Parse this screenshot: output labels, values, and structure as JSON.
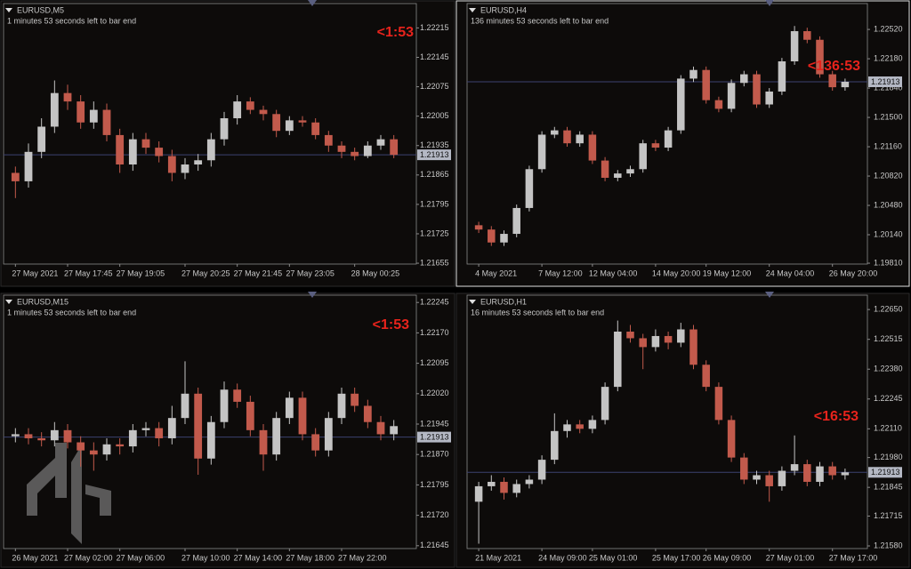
{
  "chart_data": [
    {
      "type": "candlestick",
      "title": "EURUSD,M5",
      "subtitle": "1 minutes 53 seconds left to bar end",
      "annotation": "<1:53",
      "categories": [
        "27 May 2021",
        null,
        null,
        null,
        "27 May 17:45",
        null,
        null,
        null,
        "27 May 19:05",
        null,
        null,
        null,
        null,
        "27 May 20:25",
        null,
        null,
        null,
        "27 May 21:45",
        null,
        null,
        null,
        "27 May 23:05",
        null,
        null,
        null,
        null,
        "28 May 00:25",
        null,
        null,
        null
      ],
      "open": [
        1.2187,
        1.2185,
        1.2192,
        1.2198,
        1.2206,
        1.2204,
        1.2199,
        1.2202,
        1.2196,
        1.2189,
        1.2195,
        1.2193,
        1.2191,
        1.2187,
        1.2189,
        1.219,
        1.2195,
        1.22,
        1.2204,
        1.2202,
        1.2201,
        1.2197,
        1.21995,
        1.2199,
        1.2196,
        1.21935,
        1.2192,
        1.2191,
        1.21935,
        1.2195
      ],
      "high": [
        1.21885,
        1.2194,
        1.22,
        1.2209,
        1.2208,
        1.22055,
        1.2204,
        1.22035,
        1.21975,
        1.21965,
        1.21965,
        1.21945,
        1.21925,
        1.21905,
        1.21915,
        1.21965,
        1.22015,
        1.22055,
        1.2205,
        1.2203,
        1.2202,
        1.22005,
        1.22005,
        1.22,
        1.2197,
        1.21945,
        1.2193,
        1.21945,
        1.2196,
        1.2196
      ],
      "low": [
        1.2181,
        1.21835,
        1.21905,
        1.21965,
        1.2202,
        1.21975,
        1.21975,
        1.21945,
        1.2187,
        1.21875,
        1.21915,
        1.21895,
        1.2185,
        1.21855,
        1.21875,
        1.21885,
        1.21935,
        1.21985,
        1.2201,
        1.21995,
        1.21955,
        1.2196,
        1.2198,
        1.2195,
        1.2192,
        1.21905,
        1.219,
        1.21905,
        1.21925,
        1.21905
      ],
      "close": [
        1.2185,
        1.2192,
        1.2198,
        1.2206,
        1.2204,
        1.2199,
        1.2202,
        1.2196,
        1.2189,
        1.2195,
        1.2193,
        1.2191,
        1.2187,
        1.2189,
        1.219,
        1.2195,
        1.22,
        1.2204,
        1.2202,
        1.2201,
        1.2197,
        1.21995,
        1.2199,
        1.2196,
        1.21935,
        1.2192,
        1.2191,
        1.21935,
        1.2195,
        1.21913
      ],
      "ylim": [
        1.21653,
        1.22273
      ],
      "yticks": [
        1.22215,
        1.22145,
        1.22075,
        1.22005,
        1.21935,
        1.21865,
        1.21795,
        1.21725,
        1.21655
      ],
      "last_price": 1.21913,
      "up_color": "#c4c4c4",
      "down_color": "#c25a4c",
      "annotation_color": "#e8231c",
      "price_line_color": "#3d4270"
    },
    {
      "type": "candlestick",
      "title": "EURUSD,H4",
      "subtitle": "136 minutes 53 seconds left to bar end",
      "annotation": "<136:53",
      "categories": [
        "4 May 2021",
        null,
        null,
        null,
        null,
        "7 May 12:00",
        null,
        null,
        null,
        "12 May 04:00",
        null,
        null,
        null,
        null,
        "14 May 20:00",
        null,
        null,
        null,
        "19 May 12:00",
        null,
        null,
        null,
        null,
        "24 May 04:00",
        null,
        null,
        null,
        null,
        "26 May 20:00",
        null
      ],
      "open": [
        1.2025,
        1.202,
        1.2005,
        1.2015,
        1.2045,
        1.209,
        1.213,
        1.2135,
        1.212,
        1.213,
        1.21,
        1.208,
        1.2085,
        1.209,
        1.212,
        1.2115,
        1.2135,
        1.2195,
        1.2205,
        1.217,
        1.216,
        1.219,
        1.22,
        1.2165,
        1.218,
        1.2215,
        1.225,
        1.224,
        1.22,
        1.2185
      ],
      "high": [
        1.2029,
        1.2024,
        1.2019,
        1.2049,
        1.2094,
        1.2134,
        1.2139,
        1.2139,
        1.2134,
        1.2134,
        1.2104,
        1.2089,
        1.2094,
        1.2124,
        1.2124,
        1.2139,
        1.2199,
        1.2209,
        1.2209,
        1.2174,
        1.2194,
        1.2204,
        1.2204,
        1.2184,
        1.2219,
        1.2256,
        1.2254,
        1.2244,
        1.2204,
        1.2195
      ],
      "low": [
        1.2016,
        1.2001,
        1.2001,
        1.2011,
        1.2041,
        1.2086,
        1.2126,
        1.2116,
        1.2116,
        1.2096,
        1.2076,
        1.2076,
        1.2081,
        1.2086,
        1.2111,
        1.2111,
        1.2131,
        1.2191,
        1.2166,
        1.2156,
        1.2156,
        1.2186,
        1.2161,
        1.2161,
        1.2176,
        1.2211,
        1.2236,
        1.2196,
        1.2181,
        1.2181
      ],
      "close": [
        1.202,
        1.2005,
        1.2015,
        1.2045,
        1.209,
        1.213,
        1.2135,
        1.212,
        1.213,
        1.21,
        1.208,
        1.2085,
        1.209,
        1.212,
        1.2115,
        1.2135,
        1.2195,
        1.2205,
        1.217,
        1.216,
        1.219,
        1.22,
        1.2165,
        1.218,
        1.2215,
        1.225,
        1.224,
        1.22,
        1.2185,
        1.21913
      ],
      "ylim": [
        1.198,
        1.2282
      ],
      "yticks": [
        {
          "value": 1.2252,
          "label": "1.22520"
        },
        {
          "value": 1.2218,
          "label": "1.22180"
        },
        {
          "value": 1.2184,
          "label": "1.21840"
        },
        {
          "value": 1.215,
          "label": "1.21500"
        },
        {
          "value": 1.2116,
          "label": "1.21160"
        },
        {
          "value": 1.2082,
          "label": "1.20820"
        },
        {
          "value": 1.2048,
          "label": "1.20480"
        },
        {
          "value": 1.2014,
          "label": "1.20140"
        },
        {
          "value": 1.1981,
          "label": "1.19810"
        }
      ],
      "last_price": 1.21913,
      "up_color": "#c4c4c4",
      "down_color": "#c25a4c",
      "annotation_color": "#e8231c",
      "price_line_color": "#3d4270"
    },
    {
      "type": "candlestick",
      "title": "EURUSD,M15",
      "subtitle": "1 minutes 53 seconds left to bar end",
      "annotation": "<1:53",
      "categories": [
        "26 May 2021",
        null,
        null,
        null,
        "27 May 02:00",
        null,
        null,
        null,
        "27 May 06:00",
        null,
        null,
        null,
        null,
        "27 May 10:00",
        null,
        null,
        null,
        "27 May 14:00",
        null,
        null,
        null,
        "27 May 18:00",
        null,
        null,
        null,
        "27 May 22:00",
        null,
        null,
        null,
        null
      ],
      "open": [
        1.21915,
        1.2192,
        1.2191,
        1.21905,
        1.2193,
        1.219,
        1.2188,
        1.2187,
        1.21895,
        1.2189,
        1.2193,
        1.21935,
        1.2191,
        1.2196,
        1.2202,
        1.2186,
        1.2195,
        1.2203,
        1.22,
        1.2193,
        1.2187,
        1.2196,
        1.2201,
        1.2192,
        1.2188,
        1.2196,
        1.2202,
        1.2199,
        1.2195,
        1.2192
      ],
      "high": [
        1.21935,
        1.21935,
        1.21925,
        1.2195,
        1.21945,
        1.21915,
        1.219,
        1.2191,
        1.2191,
        1.21945,
        1.2195,
        1.2195,
        1.2199,
        1.221,
        1.22035,
        1.21965,
        1.2205,
        1.22045,
        1.22015,
        1.21945,
        1.21975,
        1.22025,
        1.22025,
        1.21935,
        1.21975,
        1.22035,
        1.22035,
        1.22005,
        1.21965,
        1.21955
      ],
      "low": [
        1.219,
        1.21895,
        1.2189,
        1.2189,
        1.21885,
        1.2184,
        1.2183,
        1.21855,
        1.2187,
        1.21875,
        1.21915,
        1.2189,
        1.21895,
        1.21945,
        1.2182,
        1.21845,
        1.21935,
        1.21985,
        1.21915,
        1.2183,
        1.21855,
        1.21945,
        1.21905,
        1.21865,
        1.21865,
        1.21945,
        1.21975,
        1.21935,
        1.21905,
        1.21905
      ],
      "close": [
        1.2192,
        1.2191,
        1.21905,
        1.2193,
        1.219,
        1.2188,
        1.2187,
        1.21895,
        1.2189,
        1.2193,
        1.21935,
        1.2191,
        1.2196,
        1.2202,
        1.2186,
        1.2195,
        1.2203,
        1.22,
        1.2193,
        1.2187,
        1.2196,
        1.2201,
        1.2192,
        1.2188,
        1.2196,
        1.2202,
        1.2199,
        1.2195,
        1.2192,
        1.2194
      ],
      "ylim": [
        1.21638,
        1.22263
      ],
      "yticks": [
        1.22245,
        {
          "value": 1.2217,
          "label": "1.22170"
        },
        1.22095,
        {
          "value": 1.2202,
          "label": "1.22020"
        },
        1.21945,
        {
          "value": 1.2187,
          "label": "1.21870"
        },
        1.21795,
        {
          "value": 1.2172,
          "label": "1.21720"
        },
        1.21645
      ],
      "last_price": 1.21913,
      "up_color": "#c4c4c4",
      "down_color": "#c25a4c",
      "annotation_color": "#e8231c",
      "price_line_color": "#3d4270"
    },
    {
      "type": "candlestick",
      "title": "EURUSD,H1",
      "subtitle": "16 minutes 53 seconds left to bar end",
      "annotation": "<16:53",
      "categories": [
        "21 May 2021",
        null,
        null,
        null,
        null,
        "24 May 09:00",
        null,
        null,
        null,
        "25 May 01:00",
        null,
        null,
        null,
        null,
        "25 May 17:00",
        null,
        null,
        null,
        "26 May 09:00",
        null,
        null,
        null,
        null,
        "27 May 01:00",
        null,
        null,
        null,
        null,
        "27 May 17:00",
        null
      ],
      "open": [
        1.2178,
        1.2185,
        1.2187,
        1.2182,
        1.2186,
        1.2188,
        1.2197,
        1.221,
        1.2213,
        1.2211,
        1.2215,
        1.223,
        1.2255,
        1.2252,
        1.2248,
        1.2253,
        1.225,
        1.2256,
        1.224,
        1.223,
        1.2215,
        1.2198,
        1.2188,
        1.219,
        1.2185,
        1.2192,
        1.2195,
        1.2187,
        1.2194,
        1.219
      ],
      "high": [
        1.2187,
        1.219,
        1.2189,
        1.2188,
        1.219,
        1.2199,
        1.2218,
        1.2215,
        1.2215,
        1.2217,
        1.2232,
        1.226,
        1.2258,
        1.2254,
        1.2256,
        1.2255,
        1.2259,
        1.2258,
        1.2242,
        1.2232,
        1.2217,
        1.22,
        1.2192,
        1.2192,
        1.2194,
        1.2208,
        1.2197,
        1.2196,
        1.2196,
        1.2193
      ],
      "low": [
        1.2159,
        1.2183,
        1.2179,
        1.218,
        1.2184,
        1.2186,
        1.2195,
        1.2207,
        1.2209,
        1.2209,
        1.2213,
        1.2228,
        1.225,
        1.2238,
        1.2246,
        1.2247,
        1.2248,
        1.2238,
        1.2228,
        1.2213,
        1.2196,
        1.2186,
        1.2186,
        1.2178,
        1.2183,
        1.219,
        1.2185,
        1.2185,
        1.2188,
        1.2188
      ],
      "close": [
        1.2185,
        1.2187,
        1.2182,
        1.2186,
        1.2188,
        1.2197,
        1.221,
        1.2213,
        1.2211,
        1.2215,
        1.223,
        1.2255,
        1.2252,
        1.2248,
        1.2253,
        1.225,
        1.2256,
        1.224,
        1.223,
        1.2215,
        1.2198,
        1.2188,
        1.219,
        1.2185,
        1.2192,
        1.2195,
        1.2187,
        1.2194,
        1.219,
        1.21913
      ],
      "ylim": [
        1.21568,
        1.22715
      ],
      "yticks": [
        {
          "value": 1.2265,
          "label": "1.22650"
        },
        1.22515,
        {
          "value": 1.2238,
          "label": "1.22380"
        },
        1.22245,
        {
          "value": 1.2211,
          "label": "1.22110"
        },
        {
          "value": 1.2198,
          "label": "1.21980"
        },
        1.21845,
        1.21715,
        {
          "value": 1.2158,
          "label": "1.21580"
        }
      ],
      "last_price": 1.21913,
      "up_color": "#c4c4c4",
      "down_color": "#c25a4c",
      "annotation_color": "#e8231c",
      "price_line_color": "#3d4270"
    }
  ]
}
